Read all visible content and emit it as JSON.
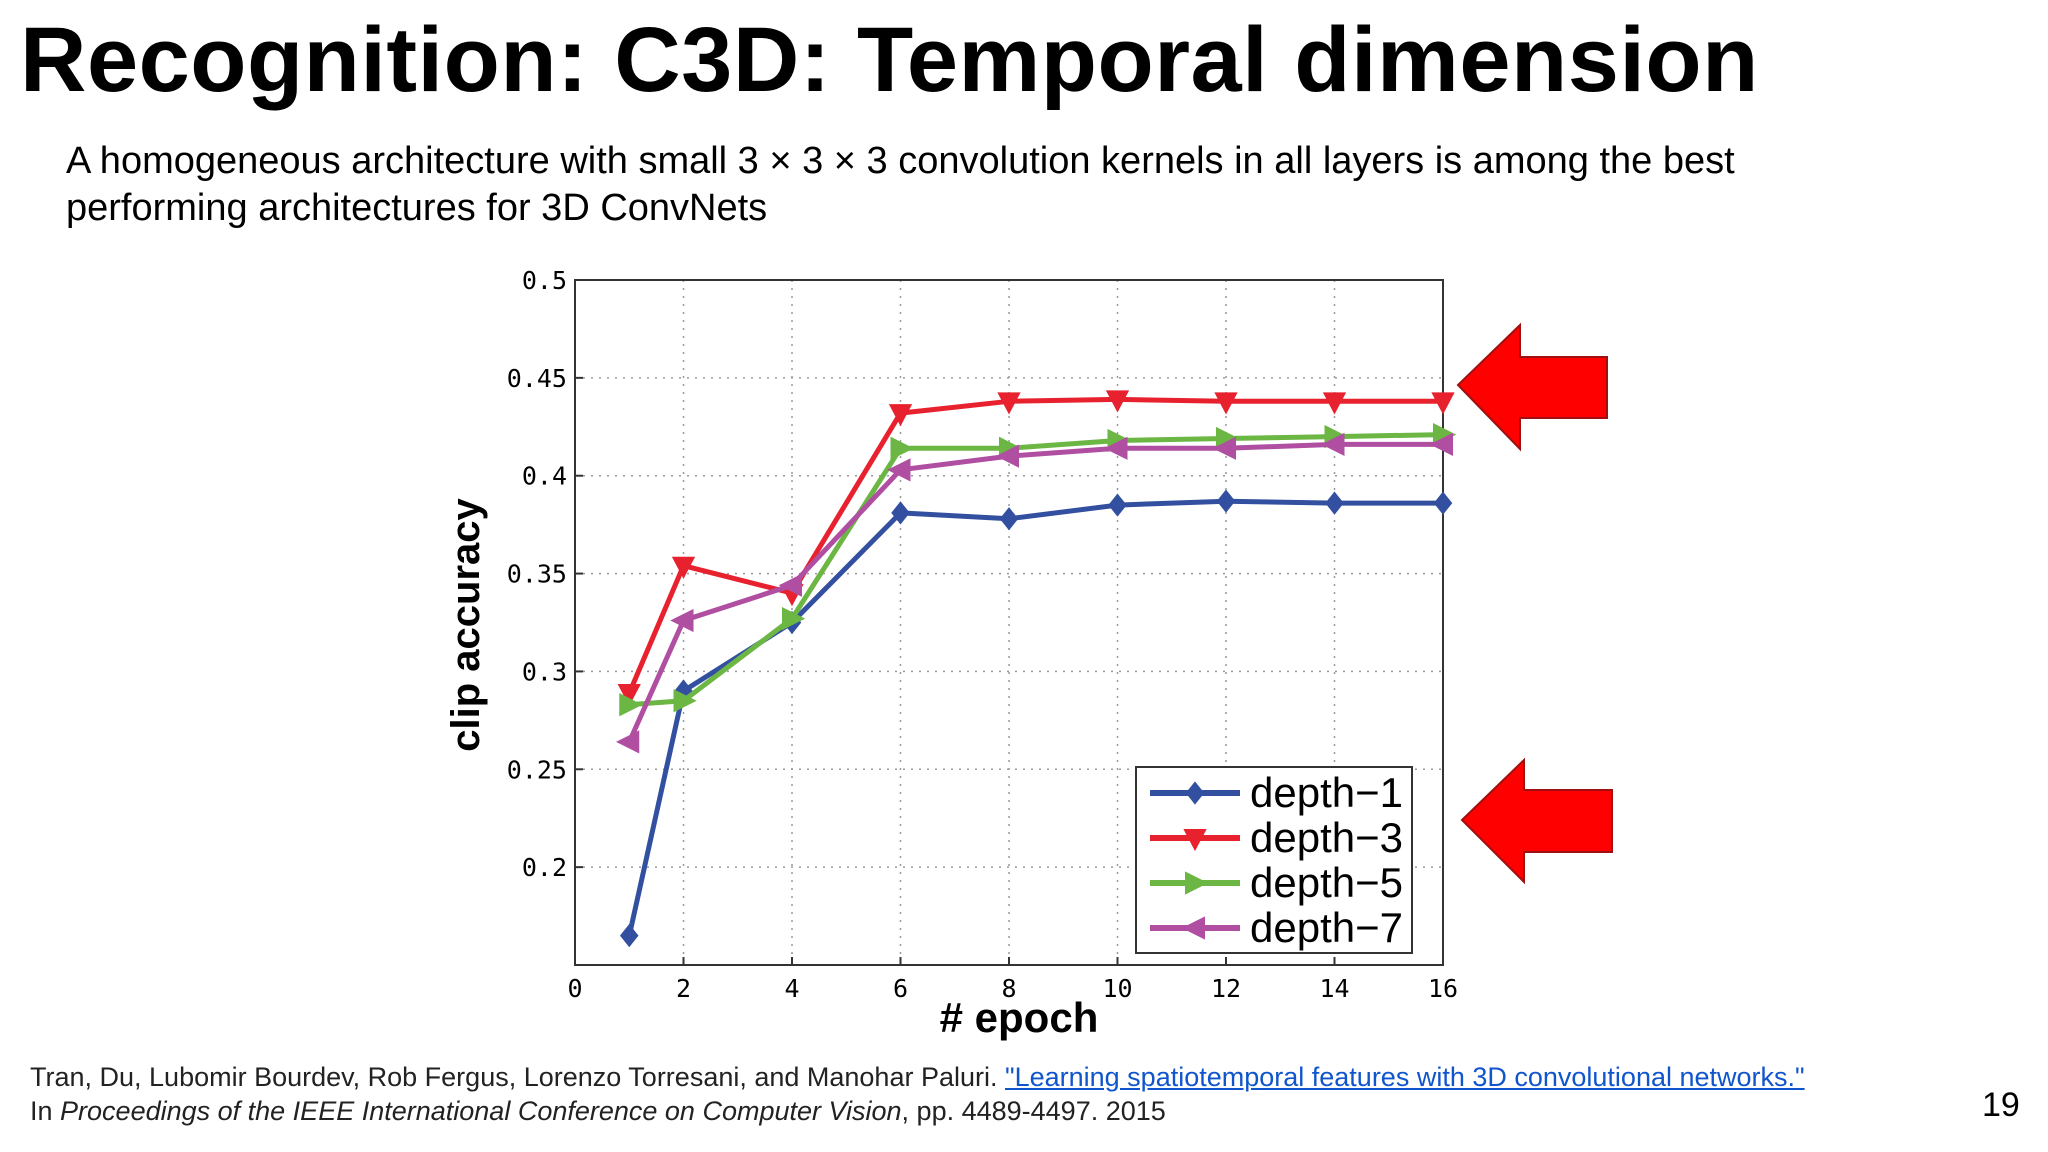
{
  "slide": {
    "title": "Recognition: C3D: Temporal dimension",
    "subtitle": "A homogeneous architecture with small 3 × 3 × 3 convolution kernels in all layers is among the best performing architectures for 3D ConvNets",
    "page_number": "19"
  },
  "citation": {
    "authors": "Tran, Du, Lubomir Bourdev, Rob Fergus, Lorenzo Torresani, and Manohar Paluri. ",
    "link_text": "\"Learning spatiotemporal features with 3D convolutional networks.\"",
    "prefix": "In ",
    "venue": "Proceedings of the IEEE International Conference on Computer Vision",
    "suffix": ", pp. 4489-4497. 2015"
  },
  "arrows": {
    "count": 2,
    "color": "#ff0000",
    "direction": "left"
  },
  "chart_data": {
    "type": "line",
    "xlabel": "# epoch",
    "ylabel": "clip accuracy",
    "xlim": [
      0,
      16
    ],
    "ylim": [
      0.15,
      0.5
    ],
    "xticks": [
      "0",
      "2",
      "4",
      "6",
      "8",
      "10",
      "12",
      "14",
      "16"
    ],
    "yticks": [
      "0.2",
      "0.25",
      "0.3",
      "0.35",
      "0.4",
      "0.45",
      "0.5"
    ],
    "grid": true,
    "legend_position": "bottom-right",
    "x": [
      1,
      2,
      4,
      6,
      8,
      10,
      12,
      14,
      16
    ],
    "series": [
      {
        "name": "depth−1",
        "color": "#3350a0",
        "marker": "diamond",
        "values": [
          0.165,
          0.29,
          0.325,
          0.381,
          0.378,
          0.385,
          0.387,
          0.386,
          0.386
        ]
      },
      {
        "name": "depth−3",
        "color": "#e8212f",
        "marker": "triangle-down",
        "values": [
          0.289,
          0.354,
          0.34,
          0.432,
          0.438,
          0.439,
          0.438,
          0.438,
          0.438
        ]
      },
      {
        "name": "depth−5",
        "color": "#6cb644",
        "marker": "triangle-right",
        "values": [
          0.283,
          0.285,
          0.327,
          0.414,
          0.414,
          0.418,
          0.419,
          0.42,
          0.421
        ]
      },
      {
        "name": "depth−7",
        "color": "#b04fa1",
        "marker": "triangle-left",
        "values": [
          0.264,
          0.326,
          0.344,
          0.403,
          0.41,
          0.414,
          0.414,
          0.416,
          0.416
        ]
      }
    ]
  }
}
